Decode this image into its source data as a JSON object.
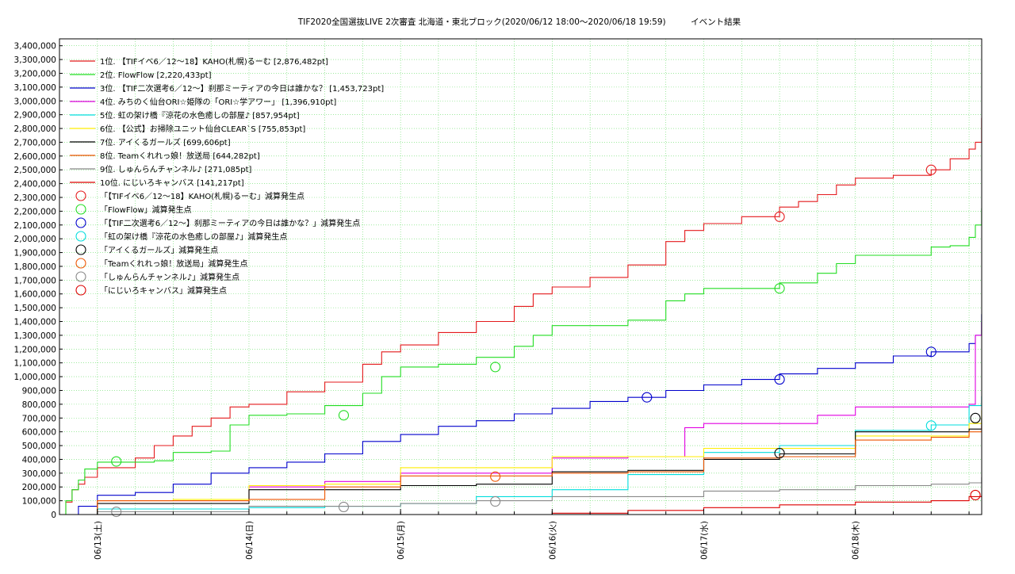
{
  "chart_data": {
    "type": "line",
    "title": "TIF2020全国選抜LIVE 2次審査 北海道・東北ブロック(2020/06/12 18:00～2020/06/18 19:59)　　　イベント結果",
    "xlabel": "",
    "ylabel": "",
    "ylim": [
      0,
      3450000
    ],
    "yticks": [
      0,
      100000,
      200000,
      300000,
      400000,
      500000,
      600000,
      700000,
      800000,
      900000,
      1000000,
      1100000,
      1200000,
      1300000,
      1400000,
      1500000,
      1600000,
      1700000,
      1800000,
      1900000,
      2000000,
      2100000,
      2200000,
      2300000,
      2400000,
      2500000,
      2600000,
      2700000,
      2800000,
      2900000,
      3000000,
      3100000,
      3200000,
      3300000,
      3400000
    ],
    "ytick_labels": [
      "0",
      "100,000",
      "200,000",
      "300,000",
      "400,000",
      "500,000",
      "600,000",
      "700,000",
      "800,000",
      "900,000",
      "1,000,000",
      "1,100,000",
      "1,200,000",
      "1,300,000",
      "1,400,000",
      "1,500,000",
      "1,600,000",
      "1,700,000",
      "1,800,000",
      "1,900,000",
      "2,000,000",
      "2,100,000",
      "2,200,000",
      "2,300,000",
      "2,400,000",
      "2,500,000",
      "2,600,000",
      "2,700,000",
      "2,800,000",
      "2,900,000",
      "3,000,000",
      "3,100,000",
      "3,200,000",
      "3,300,000",
      "3,400,000"
    ],
    "xlim": [
      "2020-06-12T18:00",
      "2020-06-18T20:00"
    ],
    "xticks": [
      "2020-06-13T00:00",
      "2020-06-14T00:00",
      "2020-06-15T00:00",
      "2020-06-16T00:00",
      "2020-06-17T00:00",
      "2020-06-18T00:00"
    ],
    "xtick_labels": [
      "06/13(土)",
      "06/14(日)",
      "06/15(月)",
      "06/16(火)",
      "06/17(水)",
      "06/18(木)"
    ],
    "grid": true,
    "legend_position": "top-left",
    "series": [
      {
        "name": "1位. 【TIFイベ6／12〜18】KAHO(札幌)るーむ [2,876,482pt]",
        "color": "#e41a1c",
        "x": [
          "2020-06-12T18:00",
          "2020-06-12T19:00",
          "2020-06-12T20:00",
          "2020-06-12T21:00",
          "2020-06-12T22:00",
          "2020-06-13T00:00",
          "2020-06-13T06:00",
          "2020-06-13T09:00",
          "2020-06-13T12:00",
          "2020-06-13T15:00",
          "2020-06-13T18:00",
          "2020-06-13T21:00",
          "2020-06-14T00:00",
          "2020-06-14T06:00",
          "2020-06-14T12:00",
          "2020-06-14T18:00",
          "2020-06-14T21:00",
          "2020-06-15T00:00",
          "2020-06-15T06:00",
          "2020-06-15T12:00",
          "2020-06-15T18:00",
          "2020-06-15T21:00",
          "2020-06-16T00:00",
          "2020-06-16T06:00",
          "2020-06-16T12:00",
          "2020-06-16T18:00",
          "2020-06-16T21:00",
          "2020-06-17T00:00",
          "2020-06-17T06:00",
          "2020-06-17T12:00",
          "2020-06-17T15:00",
          "2020-06-17T18:00",
          "2020-06-17T21:00",
          "2020-06-18T00:00",
          "2020-06-18T06:00",
          "2020-06-18T12:00",
          "2020-06-18T15:00",
          "2020-06-18T18:00",
          "2020-06-18T19:00",
          "2020-06-18T19:59"
        ],
        "y": [
          0,
          90000,
          180000,
          220000,
          270000,
          340000,
          410000,
          500000,
          570000,
          640000,
          700000,
          780000,
          800000,
          890000,
          960000,
          1090000,
          1180000,
          1230000,
          1320000,
          1400000,
          1510000,
          1600000,
          1650000,
          1720000,
          1810000,
          1980000,
          2060000,
          2110000,
          2160000,
          2230000,
          2270000,
          2320000,
          2390000,
          2440000,
          2460000,
          2500000,
          2580000,
          2650000,
          2700000,
          2876482
        ]
      },
      {
        "name": "2位. FlowFlow [2,220,433pt]",
        "color": "#22dd22",
        "x": [
          "2020-06-12T18:00",
          "2020-06-12T19:00",
          "2020-06-12T20:00",
          "2020-06-12T21:00",
          "2020-06-12T22:00",
          "2020-06-13T00:00",
          "2020-06-13T06:00",
          "2020-06-13T09:00",
          "2020-06-13T12:00",
          "2020-06-13T18:00",
          "2020-06-13T21:00",
          "2020-06-14T00:00",
          "2020-06-14T06:00",
          "2020-06-14T12:00",
          "2020-06-14T18:00",
          "2020-06-14T21:00",
          "2020-06-15T00:00",
          "2020-06-15T06:00",
          "2020-06-15T12:00",
          "2020-06-15T18:00",
          "2020-06-15T21:00",
          "2020-06-16T00:00",
          "2020-06-16T06:00",
          "2020-06-16T12:00",
          "2020-06-16T18:00",
          "2020-06-16T21:00",
          "2020-06-17T00:00",
          "2020-06-17T06:00",
          "2020-06-17T12:00",
          "2020-06-17T18:00",
          "2020-06-17T21:00",
          "2020-06-18T00:00",
          "2020-06-18T06:00",
          "2020-06-18T12:00",
          "2020-06-18T15:00",
          "2020-06-18T18:00",
          "2020-06-18T19:00",
          "2020-06-18T19:59"
        ],
        "y": [
          0,
          100000,
          180000,
          250000,
          330000,
          380000,
          380000,
          390000,
          450000,
          460000,
          650000,
          720000,
          730000,
          790000,
          880000,
          1000000,
          1070000,
          1090000,
          1140000,
          1220000,
          1300000,
          1370000,
          1370000,
          1410000,
          1550000,
          1600000,
          1640000,
          1640000,
          1680000,
          1750000,
          1820000,
          1880000,
          1880000,
          1940000,
          1950000,
          2010000,
          2100000,
          2220433
        ]
      },
      {
        "name": "3位. 【TIF二次選考6／12〜】刹那ミーティアの今日は誰かな？ [1,453,723pt]",
        "color": "#0000cc",
        "x": [
          "2020-06-12T18:00",
          "2020-06-12T21:00",
          "2020-06-13T00:00",
          "2020-06-13T06:00",
          "2020-06-13T12:00",
          "2020-06-13T18:00",
          "2020-06-14T00:00",
          "2020-06-14T06:00",
          "2020-06-14T12:00",
          "2020-06-14T18:00",
          "2020-06-15T00:00",
          "2020-06-15T06:00",
          "2020-06-15T12:00",
          "2020-06-15T18:00",
          "2020-06-16T00:00",
          "2020-06-16T06:00",
          "2020-06-16T12:00",
          "2020-06-16T18:00",
          "2020-06-17T00:00",
          "2020-06-17T06:00",
          "2020-06-17T12:00",
          "2020-06-17T18:00",
          "2020-06-18T00:00",
          "2020-06-18T06:00",
          "2020-06-18T12:00",
          "2020-06-18T18:00",
          "2020-06-18T19:00",
          "2020-06-18T19:59"
        ],
        "y": [
          0,
          60000,
          140000,
          160000,
          220000,
          300000,
          340000,
          380000,
          440000,
          530000,
          580000,
          640000,
          680000,
          730000,
          770000,
          820000,
          850000,
          900000,
          940000,
          980000,
          1020000,
          1060000,
          1100000,
          1150000,
          1180000,
          1240000,
          1300000,
          1453723
        ]
      },
      {
        "name": "4位. みちのく仙台ORI☆姫隊の「ORI☆学アワー」 [1,396,910pt]",
        "color": "#e100e1",
        "x": [
          "2020-06-12T18:00",
          "2020-06-13T00:00",
          "2020-06-13T12:00",
          "2020-06-14T00:00",
          "2020-06-14T12:00",
          "2020-06-15T00:00",
          "2020-06-15T12:00",
          "2020-06-15T18:00",
          "2020-06-16T00:00",
          "2020-06-16T12:00",
          "2020-06-16T18:00",
          "2020-06-16T21:00",
          "2020-06-17T00:00",
          "2020-06-17T12:00",
          "2020-06-17T18:00",
          "2020-06-18T00:00",
          "2020-06-18T12:00",
          "2020-06-18T18:00",
          "2020-06-18T19:00",
          "2020-06-18T19:59"
        ],
        "y": [
          0,
          100000,
          100000,
          200000,
          240000,
          300000,
          300000,
          300000,
          410000,
          420000,
          420000,
          630000,
          660000,
          660000,
          720000,
          780000,
          780000,
          800000,
          1300000,
          1396910
        ]
      },
      {
        "name": "5位. 虹の架け橋『涼花の水色癒しの部屋♪ [857,954pt]",
        "color": "#00dddd",
        "x": [
          "2020-06-12T18:00",
          "2020-06-13T00:00",
          "2020-06-13T12:00",
          "2020-06-14T00:00",
          "2020-06-14T12:00",
          "2020-06-15T00:00",
          "2020-06-15T12:00",
          "2020-06-16T00:00",
          "2020-06-16T12:00",
          "2020-06-17T00:00",
          "2020-06-17T12:00",
          "2020-06-18T00:00",
          "2020-06-18T12:00",
          "2020-06-18T18:00",
          "2020-06-18T19:59"
        ],
        "y": [
          0,
          40000,
          40000,
          50000,
          60000,
          80000,
          130000,
          180000,
          290000,
          450000,
          500000,
          610000,
          650000,
          790000,
          857954
        ]
      },
      {
        "name": "6位. 【公式】お掃除ユニット仙台CLEAR`S [755,853pt]",
        "color": "#ffee00",
        "x": [
          "2020-06-12T18:00",
          "2020-06-13T00:00",
          "2020-06-13T12:00",
          "2020-06-14T00:00",
          "2020-06-14T12:00",
          "2020-06-15T00:00",
          "2020-06-15T12:00",
          "2020-06-16T00:00",
          "2020-06-16T12:00",
          "2020-06-17T00:00",
          "2020-06-17T12:00",
          "2020-06-18T00:00",
          "2020-06-18T12:00",
          "2020-06-18T18:00",
          "2020-06-18T19:59"
        ],
        "y": [
          0,
          100000,
          110000,
          210000,
          220000,
          340000,
          340000,
          420000,
          420000,
          480000,
          480000,
          570000,
          570000,
          660000,
          755853
        ]
      },
      {
        "name": "7位. アイくるガールズ [699,606pt]",
        "color": "#000000",
        "x": [
          "2020-06-12T18:00",
          "2020-06-13T00:00",
          "2020-06-13T12:00",
          "2020-06-14T00:00",
          "2020-06-14T12:00",
          "2020-06-15T00:00",
          "2020-06-15T12:00",
          "2020-06-16T00:00",
          "2020-06-16T12:00",
          "2020-06-17T00:00",
          "2020-06-17T12:00",
          "2020-06-18T00:00",
          "2020-06-18T12:00",
          "2020-06-18T18:00",
          "2020-06-18T19:59"
        ],
        "y": [
          0,
          80000,
          80000,
          180000,
          180000,
          210000,
          220000,
          310000,
          320000,
          400000,
          440000,
          600000,
          600000,
          620000,
          699606
        ]
      },
      {
        "name": "8位. Teamくれれっ娘！放送局 [644,282pt]",
        "color": "#ee5500",
        "x": [
          "2020-06-12T18:00",
          "2020-06-13T00:00",
          "2020-06-13T12:00",
          "2020-06-14T00:00",
          "2020-06-14T12:00",
          "2020-06-15T00:00",
          "2020-06-15T12:00",
          "2020-06-16T00:00",
          "2020-06-16T12:00",
          "2020-06-17T00:00",
          "2020-06-17T12:00",
          "2020-06-18T00:00",
          "2020-06-18T12:00",
          "2020-06-18T18:00",
          "2020-06-18T19:59"
        ],
        "y": [
          0,
          100000,
          100000,
          110000,
          200000,
          280000,
          280000,
          300000,
          310000,
          410000,
          420000,
          540000,
          560000,
          600000,
          644282
        ]
      },
      {
        "name": "9位. しゅんらんチャンネル♪ [271,085pt]",
        "color": "#888888",
        "x": [
          "2020-06-12T18:00",
          "2020-06-13T00:00",
          "2020-06-13T12:00",
          "2020-06-14T00:00",
          "2020-06-14T12:00",
          "2020-06-15T00:00",
          "2020-06-15T12:00",
          "2020-06-16T00:00",
          "2020-06-16T12:00",
          "2020-06-17T00:00",
          "2020-06-17T12:00",
          "2020-06-18T00:00",
          "2020-06-18T12:00",
          "2020-06-18T18:00",
          "2020-06-18T19:59"
        ],
        "y": [
          0,
          20000,
          20000,
          60000,
          60000,
          80000,
          100000,
          130000,
          130000,
          170000,
          180000,
          210000,
          220000,
          230000,
          271085
        ]
      },
      {
        "name": "10位. にじいろキャンバス [141,217pt]",
        "color": "#dd0000",
        "x": [
          "2020-06-12T18:00",
          "2020-06-15T18:00",
          "2020-06-16T00:00",
          "2020-06-16T12:00",
          "2020-06-17T00:00",
          "2020-06-17T12:00",
          "2020-06-18T00:00",
          "2020-06-18T12:00",
          "2020-06-18T18:00",
          "2020-06-18T19:59"
        ],
        "y": [
          0,
          0,
          10000,
          30000,
          50000,
          70000,
          90000,
          100000,
          130000,
          141217
        ]
      }
    ],
    "markers": [
      {
        "label": "「【TIFイベ6／12〜18】KAHO(札幌)るーむ」減算発生点",
        "color": "#e41a1c",
        "points": [
          {
            "x": "2020-06-17T12:00",
            "y": 2160000
          },
          {
            "x": "2020-06-18T12:00",
            "y": 2500000
          }
        ]
      },
      {
        "label": "「FlowFlow」減算発生点",
        "color": "#22dd22",
        "points": [
          {
            "x": "2020-06-13T03:00",
            "y": 385000
          },
          {
            "x": "2020-06-14T15:00",
            "y": 720000
          },
          {
            "x": "2020-06-15T15:00",
            "y": 1070000
          },
          {
            "x": "2020-06-17T12:00",
            "y": 1640000
          }
        ]
      },
      {
        "label": "「【TIF二次選考6／12〜】刹那ミーティアの今日は誰かな？」減算発生点",
        "color": "#0000cc",
        "points": [
          {
            "x": "2020-06-16T15:00",
            "y": 850000
          },
          {
            "x": "2020-06-17T12:00",
            "y": 980000
          },
          {
            "x": "2020-06-18T12:00",
            "y": 1180000
          }
        ]
      },
      {
        "label": "「虹の架け橋『涼花の水色癒しの部屋♪」減算発生点",
        "color": "#00dddd",
        "points": [
          {
            "x": "2020-06-18T12:00",
            "y": 645000
          }
        ]
      },
      {
        "label": "「アイくるガールズ」減算発生点",
        "color": "#000000",
        "points": [
          {
            "x": "2020-06-17T12:00",
            "y": 445000
          },
          {
            "x": "2020-06-18T19:00",
            "y": 699606
          }
        ]
      },
      {
        "label": "「Teamくれれっ娘！放送局」減算発生点",
        "color": "#ee5500",
        "points": [
          {
            "x": "2020-06-15T15:00",
            "y": 275000
          }
        ]
      },
      {
        "label": "「しゅんらんチャンネル♪」減算発生点",
        "color": "#888888",
        "points": [
          {
            "x": "2020-06-13T03:00",
            "y": 20000
          },
          {
            "x": "2020-06-14T15:00",
            "y": 55000
          },
          {
            "x": "2020-06-15T15:00",
            "y": 95000
          }
        ]
      },
      {
        "label": "「にじいろキャンバス」減算発生点",
        "color": "#dd0000",
        "points": [
          {
            "x": "2020-06-18T19:00",
            "y": 141217
          }
        ]
      }
    ]
  }
}
